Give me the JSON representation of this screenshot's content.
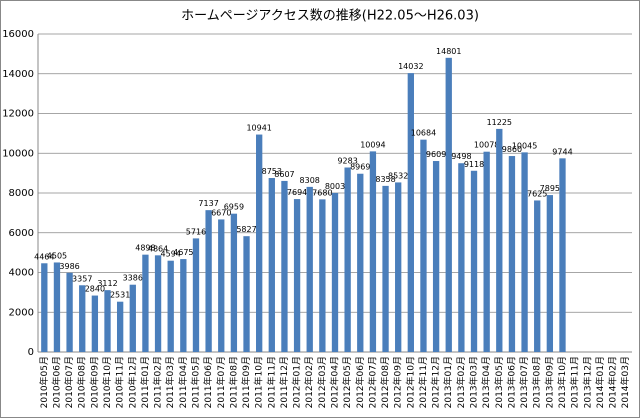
{
  "chart_data": {
    "type": "bar",
    "title": "ホームページアクセス数の推移(H22.05～H26.03)",
    "categories": [
      "2010年05月",
      "2010年06月",
      "2010年07月",
      "2010年08月",
      "2010年09月",
      "2010年10月",
      "2010年11月",
      "2010年12月",
      "2011年01月",
      "2011年02月",
      "2011年03月",
      "2011年04月",
      "2011年05月",
      "2011年06月",
      "2011年07月",
      "2011年08月",
      "2011年09月",
      "2011年10月",
      "2011年11月",
      "2011年12月",
      "2012年01月",
      "2012年02月",
      "2012年03月",
      "2012年04月",
      "2012年05月",
      "2012年06月",
      "2012年07月",
      "2012年08月",
      "2012年09月",
      "2012年10月",
      "2012年11月",
      "2012年12月",
      "2013年01月",
      "2013年02月",
      "2013年03月",
      "2013年04月",
      "2013年05月",
      "2013年06月",
      "2013年07月",
      "2013年08月",
      "2013年09月",
      "2013年10月",
      "2013年11月",
      "2013年12月",
      "2014年01月",
      "2014年02月",
      "2014年03月"
    ],
    "values": [
      4464,
      4505,
      3986,
      3357,
      2840,
      3112,
      2531,
      3386,
      4898,
      4864,
      4594,
      4675,
      5716,
      7137,
      6670,
      6959,
      5827,
      10941,
      8753,
      8607,
      7694,
      8308,
      7680,
      8003,
      9283,
      8969,
      10094,
      8358,
      8532,
      14032,
      10684,
      9609,
      14801,
      9498,
      9118,
      10078,
      11225,
      9860,
      10045,
      7625,
      7895,
      9744,
      null,
      null,
      null,
      null,
      null
    ],
    "color": "#4a7ebb",
    "ylim": [
      0,
      16000
    ],
    "yticks": [
      0,
      2000,
      4000,
      6000,
      8000,
      10000,
      12000,
      14000,
      16000
    ],
    "grid": true
  }
}
